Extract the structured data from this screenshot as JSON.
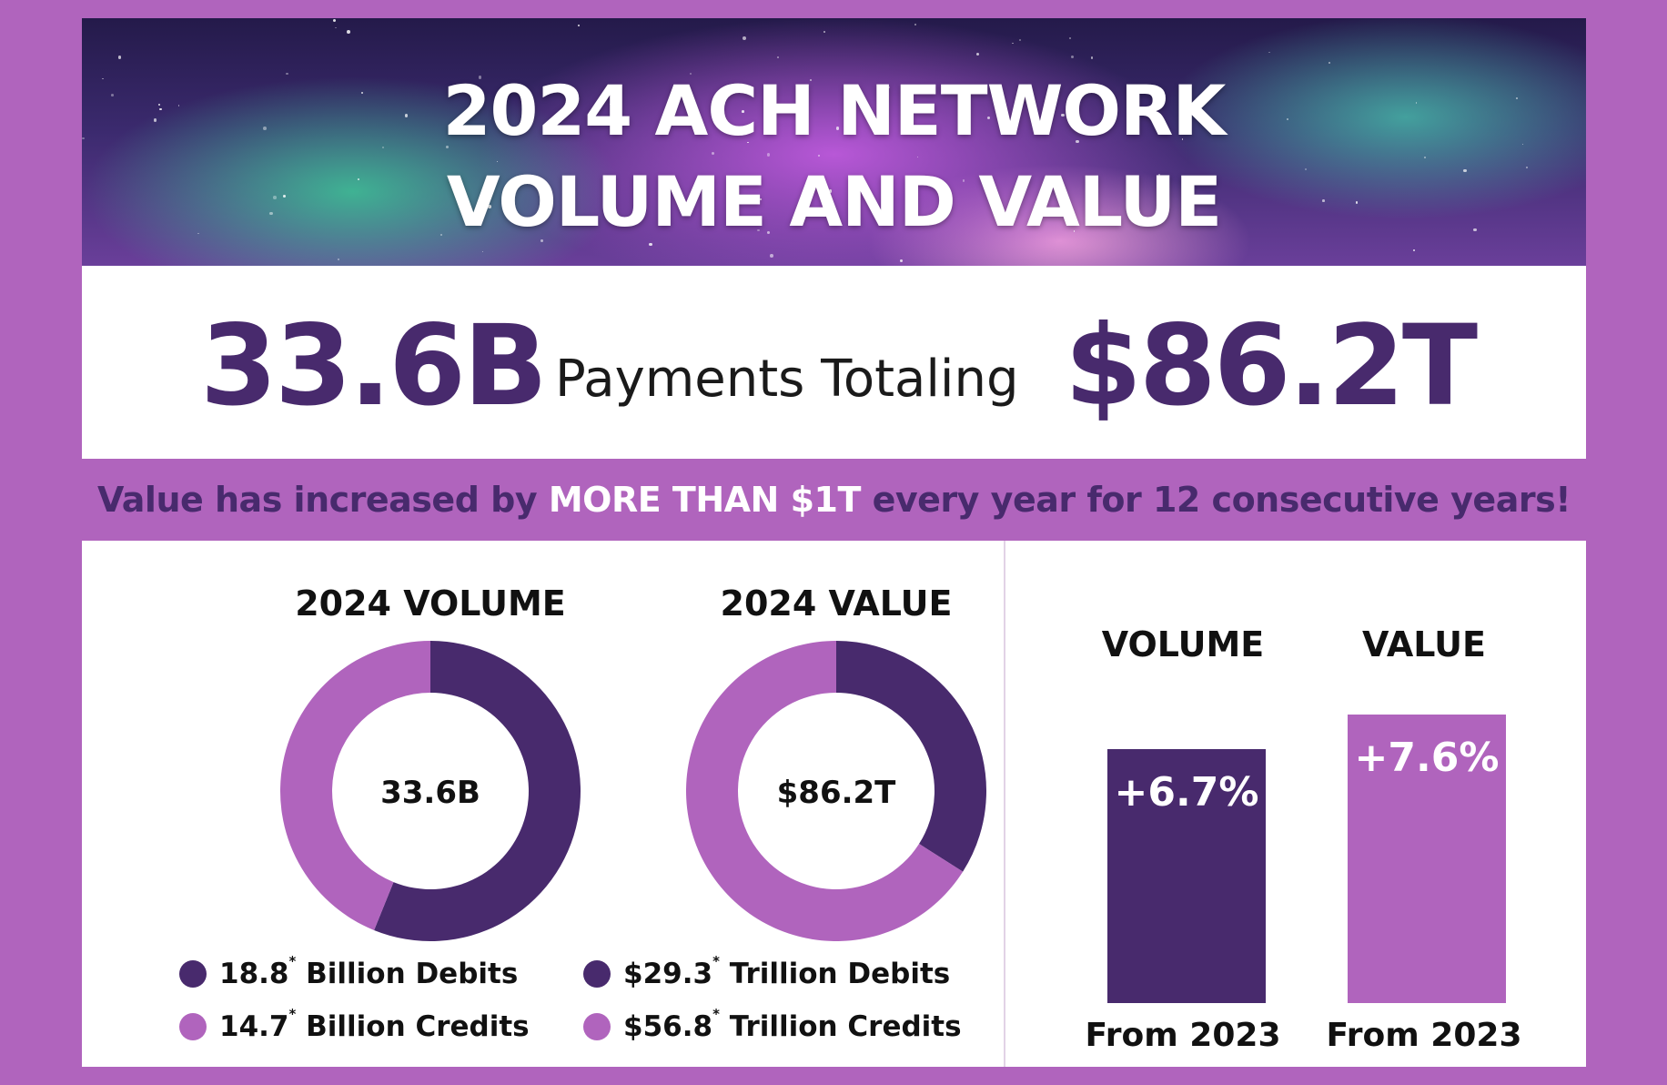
{
  "banner": {
    "title_line1": "2024 ACH NETWORK",
    "title_line2": "VOLUME AND VALUE"
  },
  "headline": {
    "volume": "33.6B",
    "connector": "Payments Totaling",
    "value": "$86.2T"
  },
  "tagline": {
    "part1": "Value has increased by ",
    "highlight": "MORE THAN $1T",
    "part2": " every year for 12 consecutive years!"
  },
  "colors": {
    "dark_purple": "#482a6d",
    "light_purple": "#b064bd",
    "background": "#b064bd"
  },
  "chart_data": [
    {
      "type": "pie",
      "title": "2024 VOLUME",
      "center_label": "33.6B",
      "slices": [
        {
          "label": "18.8* Billion Debits",
          "value": 18.8,
          "color": "#482a6d"
        },
        {
          "label": "14.7* Billion Credits",
          "value": 14.7,
          "color": "#b064bd"
        }
      ],
      "legend": [
        {
          "value": "18.8",
          "mark": "*",
          "text": " Billion Debits",
          "color": "#482a6d"
        },
        {
          "value": "14.7",
          "mark": "*",
          "text": " Billion Credits",
          "color": "#b064bd"
        }
      ]
    },
    {
      "type": "pie",
      "title": "2024 VALUE",
      "center_label": "$86.2T",
      "slices": [
        {
          "label": "$29.3* Trillion Debits",
          "value": 29.3,
          "color": "#482a6d"
        },
        {
          "label": "$56.8* Trillion Credits",
          "value": 56.8,
          "color": "#b064bd"
        }
      ],
      "legend": [
        {
          "value": "$29.3",
          "mark": "*",
          "text": " Trillion Debits",
          "color": "#482a6d"
        },
        {
          "value": "$56.8",
          "mark": "*",
          "text": " Trillion Credits",
          "color": "#b064bd"
        }
      ]
    },
    {
      "type": "bar",
      "categories": [
        "VOLUME",
        "VALUE"
      ],
      "values": [
        6.7,
        7.6
      ],
      "value_labels": [
        "+6.7%",
        "+7.6%"
      ],
      "footers": [
        "From 2023",
        "From 2023"
      ],
      "colors": [
        "#482a6d",
        "#b064bd"
      ]
    }
  ]
}
